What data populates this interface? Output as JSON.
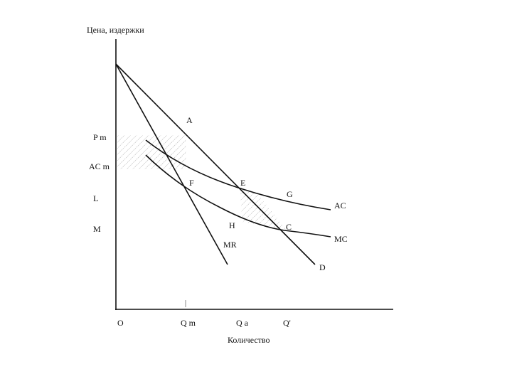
{
  "axes": {
    "y_label": "Цена, издержки",
    "x_label": "Количество",
    "origin": "O"
  },
  "price_labels": [
    "P m",
    "AC m",
    "L",
    "M"
  ],
  "quantity_labels": [
    "Q m",
    "Q a",
    "Q'"
  ],
  "points": [
    "A",
    "E",
    "F",
    "G",
    "H",
    "C"
  ],
  "curves": [
    "AC",
    "MC",
    "MR",
    "D"
  ]
}
